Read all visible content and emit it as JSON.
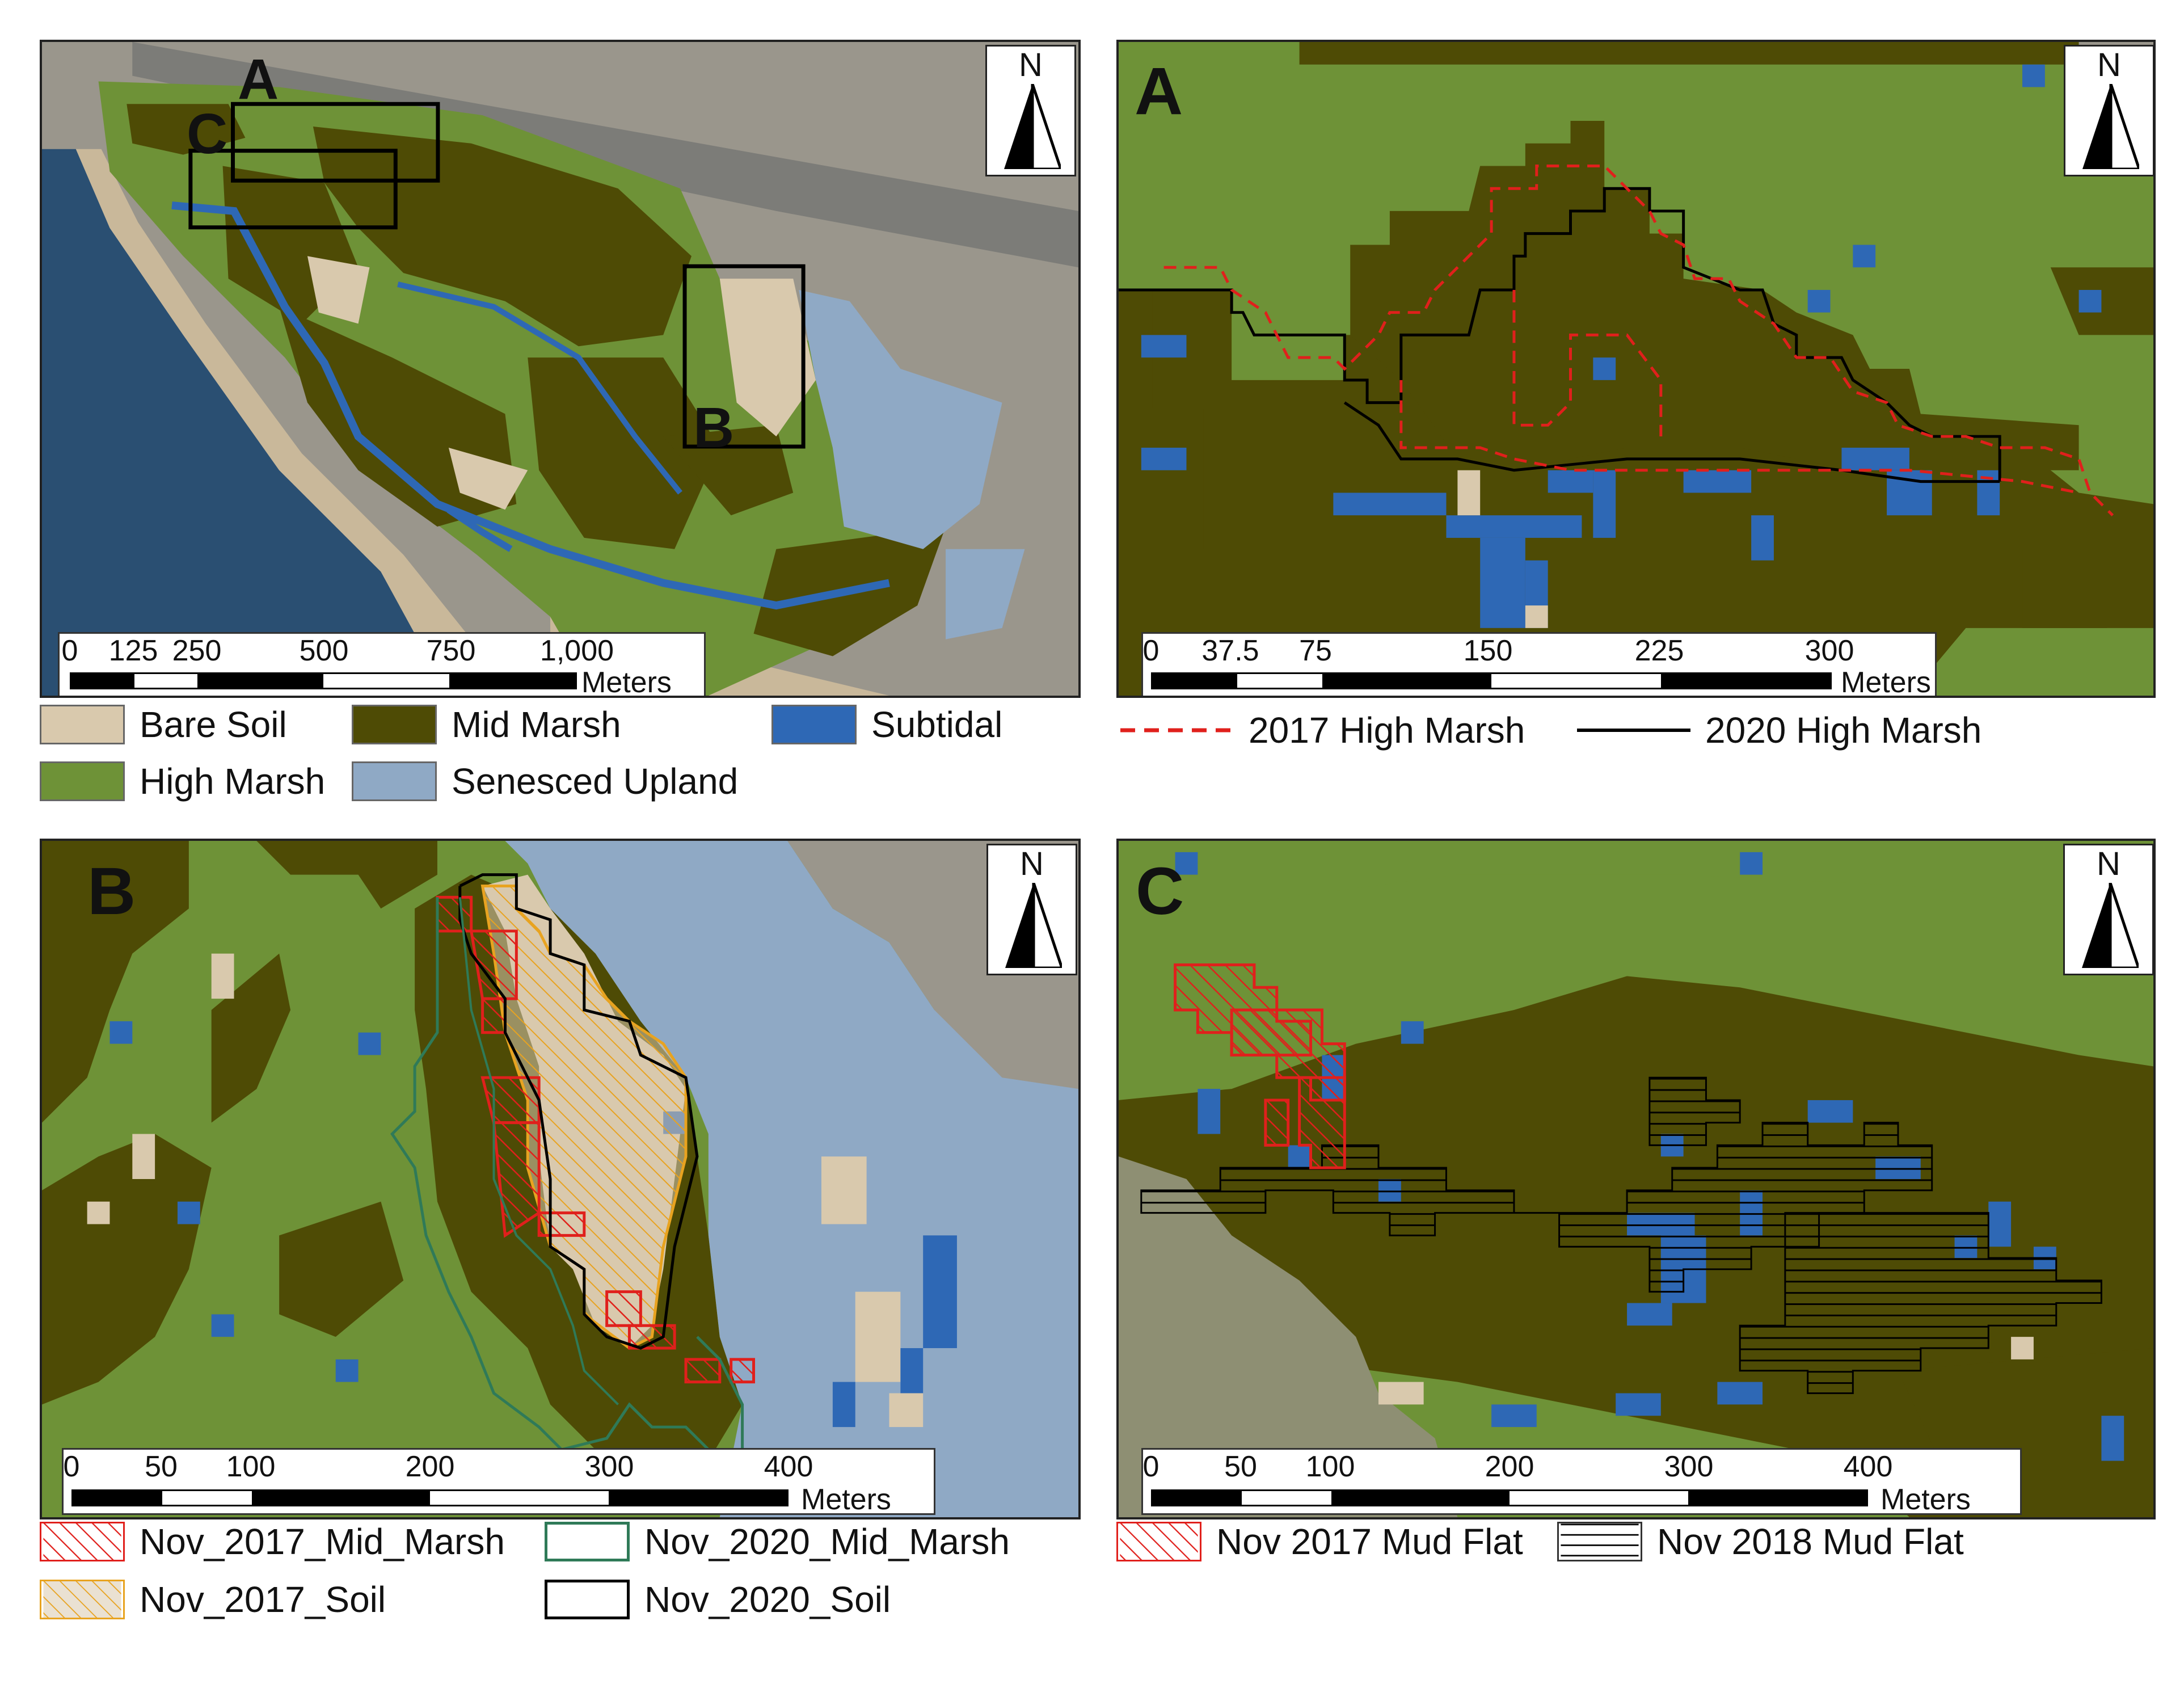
{
  "colors": {
    "bare_soil": "#d9c9ad",
    "high_marsh": "#6e9237",
    "mid_marsh": "#4e4b05",
    "subtidal": "#2e68b5",
    "senesced_upland": "#8fa9c5",
    "sand": "#c9b89a",
    "ocean": "#2a4f72",
    "urban": "#9a968c",
    "red_outline": "#e0201c",
    "orange_outline": "#e8a320",
    "green_outline": "#2f7a58",
    "black_outline": "#000000"
  },
  "overview": {
    "insets": [
      {
        "id": "A",
        "label": "A"
      },
      {
        "id": "B",
        "label": "B"
      },
      {
        "id": "C",
        "label": "C"
      }
    ],
    "north_label": "N",
    "scalebar": {
      "ticks": [
        "0",
        "125",
        "250",
        "500",
        "750",
        "1,000"
      ],
      "units": "Meters"
    },
    "legend": [
      {
        "label": "Bare Soil",
        "icon": "bare-soil-swatch"
      },
      {
        "label": "Mid Marsh",
        "icon": "mid-marsh-swatch"
      },
      {
        "label": "Subtidal",
        "icon": "subtidal-swatch"
      },
      {
        "label": "High Marsh",
        "icon": "high-marsh-swatch"
      },
      {
        "label": "Senesced Upland",
        "icon": "senesced-upland-swatch"
      }
    ]
  },
  "panel_a": {
    "letter": "A",
    "north_label": "N",
    "scalebar": {
      "ticks": [
        "0",
        "37.5",
        "75",
        "150",
        "225",
        "300"
      ],
      "units": "Meters"
    },
    "legend": [
      {
        "label": "2017 High Marsh",
        "icon": "dashed-red-line"
      },
      {
        "label": "2020 High Marsh",
        "icon": "solid-black-line"
      }
    ]
  },
  "panel_b": {
    "letter": "B",
    "north_label": "N",
    "scalebar": {
      "ticks": [
        "0",
        "50",
        "100",
        "200",
        "300",
        "400"
      ],
      "units": "Meters"
    },
    "legend": [
      {
        "label": "Nov_2017_Mid_Marsh",
        "icon": "red-hatch-swatch"
      },
      {
        "label": "Nov_2020_Mid_Marsh",
        "icon": "green-outline-swatch"
      },
      {
        "label": "Nov_2017_Soil",
        "icon": "orange-hatch-swatch"
      },
      {
        "label": "Nov_2020_Soil",
        "icon": "black-outline-swatch"
      }
    ]
  },
  "panel_c": {
    "letter": "C",
    "north_label": "N",
    "scalebar": {
      "ticks": [
        "0",
        "50",
        "100",
        "200",
        "300",
        "400"
      ],
      "units": "Meters"
    },
    "legend": [
      {
        "label": "Nov 2017 Mud Flat",
        "icon": "red-hatch-swatch"
      },
      {
        "label": "Nov 2018 Mud Flat",
        "icon": "black-horizontal-hatch-swatch"
      }
    ]
  }
}
